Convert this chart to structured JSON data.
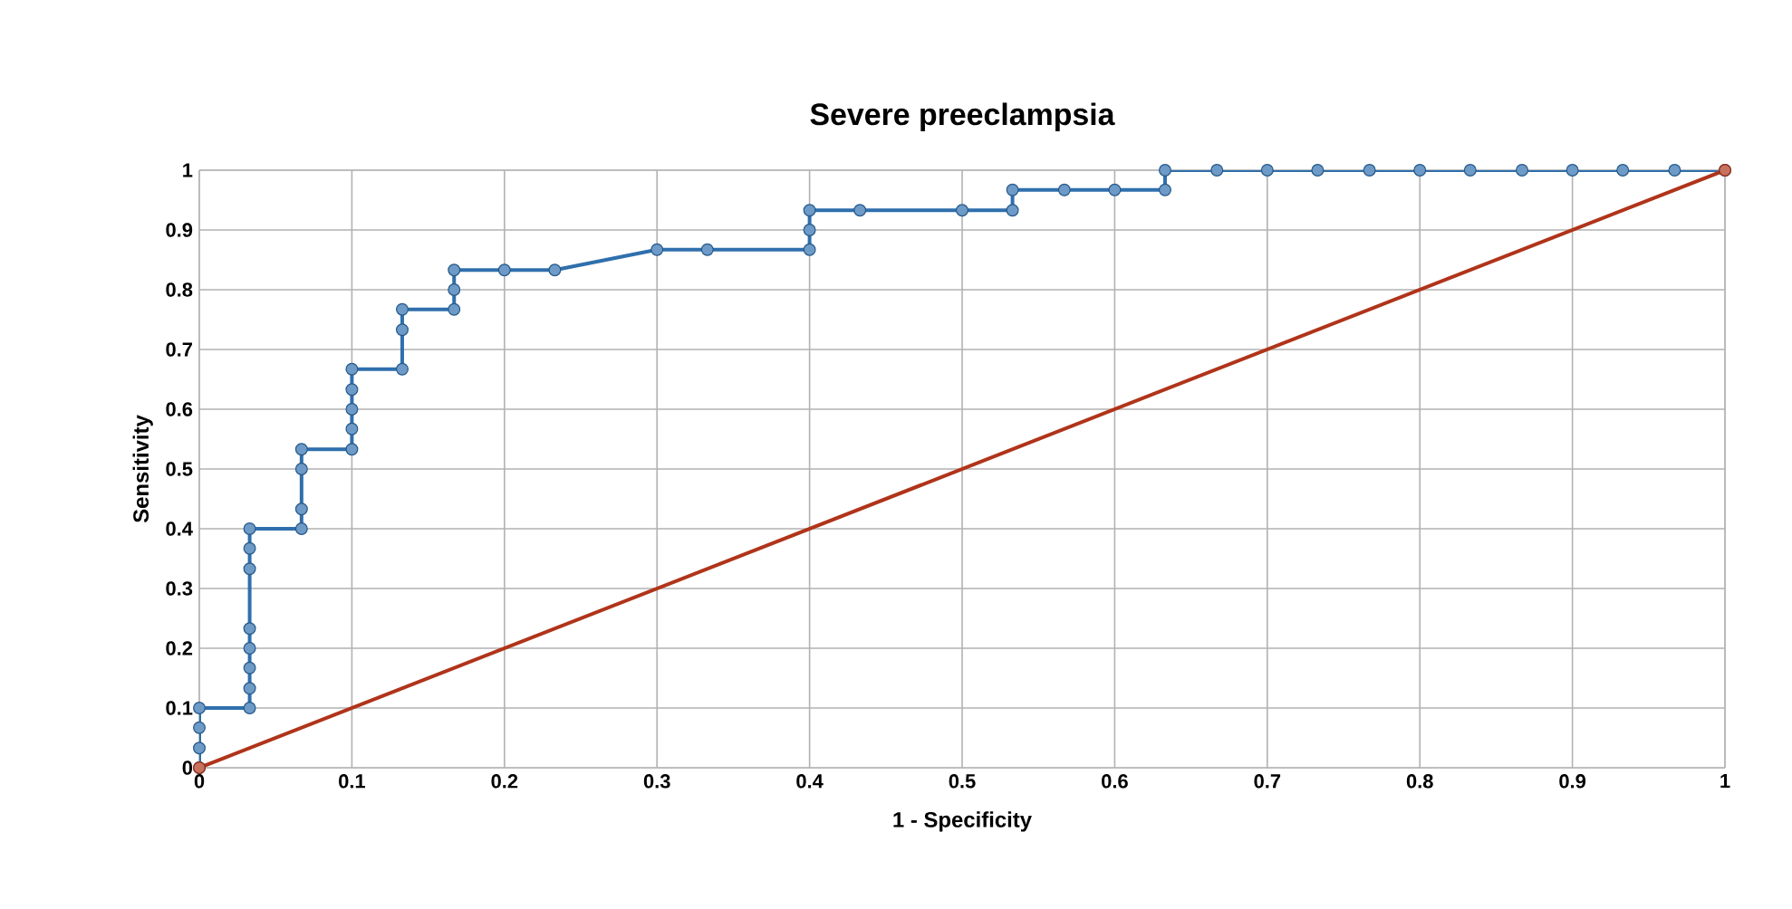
{
  "chart_data": {
    "type": "line",
    "title": "Severe preeclampsia",
    "xlabel": "1 - Specificity",
    "ylabel": "Sensitivity",
    "xlim": [
      0,
      1
    ],
    "ylim": [
      0,
      1
    ],
    "xticks": [
      0,
      0.1,
      0.2,
      0.3,
      0.4,
      0.5,
      0.6,
      0.7,
      0.8,
      0.9,
      1
    ],
    "yticks": [
      0,
      0.1,
      0.2,
      0.3,
      0.4,
      0.5,
      0.6,
      0.7,
      0.8,
      0.9,
      1
    ],
    "grid": true,
    "marker": "circle",
    "line_style": "solid",
    "series": [
      {
        "color": "#2f6fad",
        "x": [
          0,
          0,
          0,
          0,
          0.033,
          0.033,
          0.033,
          0.033,
          0.033,
          0.033,
          0.033,
          0.033,
          0.067,
          0.067,
          0.067,
          0.067,
          0.1,
          0.1,
          0.1,
          0.1,
          0.1,
          0.133,
          0.133,
          0.133,
          0.167,
          0.167,
          0.167,
          0.2,
          0.233,
          0.3,
          0.333,
          0.4,
          0.4,
          0.4,
          0.433,
          0.5,
          0.533,
          0.533,
          0.567,
          0.6,
          0.633,
          0.633,
          0.667,
          0.7,
          0.733,
          0.767,
          0.8,
          0.833,
          0.867,
          0.9,
          0.933,
          0.967,
          1
        ],
        "values": [
          0,
          0.033,
          0.067,
          0.1,
          0.1,
          0.133,
          0.167,
          0.2,
          0.233,
          0.333,
          0.367,
          0.4,
          0.4,
          0.433,
          0.5,
          0.533,
          0.533,
          0.567,
          0.6,
          0.633,
          0.667,
          0.667,
          0.733,
          0.767,
          0.767,
          0.8,
          0.833,
          0.833,
          0.833,
          0.867,
          0.867,
          0.867,
          0.9,
          0.933,
          0.933,
          0.933,
          0.933,
          0.967,
          0.967,
          0.967,
          0.967,
          1,
          1,
          1,
          1,
          1,
          1,
          1,
          1,
          1,
          1,
          1,
          1
        ]
      },
      {
        "color": "#b0341a",
        "x": [
          0,
          1
        ],
        "values": [
          0,
          1
        ]
      }
    ]
  }
}
